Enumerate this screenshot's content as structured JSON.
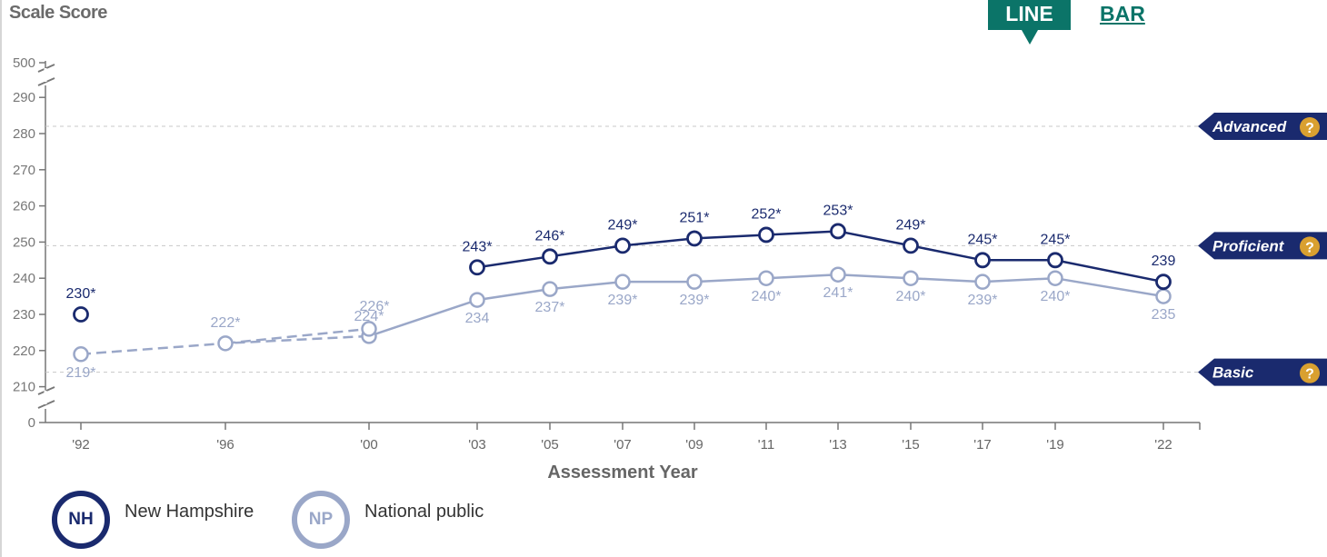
{
  "toggle": {
    "line_label": "LINE",
    "bar_label": "BAR",
    "active": "LINE"
  },
  "legend": [
    {
      "abbr": "NH",
      "label": "New Hampshire"
    },
    {
      "abbr": "NP",
      "label": "National public"
    }
  ],
  "colors": {
    "new_hampshire": "#1a2a6e",
    "national_public": "#9aa7c8",
    "accent": "#0b7468",
    "axis": "#777777",
    "achievement_badge": "#1a2a6e",
    "help_icon": "#d9a030"
  },
  "chart_data": {
    "type": "line",
    "ylabel": "Scale Score",
    "xlabel": "Assessment Year",
    "categories": [
      "'92",
      "'96",
      "'00",
      "'03",
      "'05",
      "'07",
      "'09",
      "'11",
      "'13",
      "'15",
      "'17",
      "'19",
      "'22"
    ],
    "yticks": [
      0,
      210,
      220,
      230,
      240,
      250,
      260,
      270,
      280,
      290,
      500
    ],
    "ylim": [
      210,
      290
    ],
    "axis_breaks": [
      "0-210",
      "290-500"
    ],
    "grid": false,
    "legend_position": "bottom-left",
    "achievement_levels": [
      {
        "name": "Advanced",
        "score": 282
      },
      {
        "name": "Proficient",
        "score": 249
      },
      {
        "name": "Basic",
        "score": 214
      }
    ],
    "series": [
      {
        "name": "New Hampshire",
        "values": [
          230,
          null,
          null,
          243,
          246,
          249,
          251,
          252,
          253,
          249,
          245,
          245,
          239
        ],
        "labels": [
          "230*",
          "",
          "",
          "243*",
          "246*",
          "249*",
          "251*",
          "252*",
          "253*",
          "249*",
          "245*",
          "245*",
          "239"
        ],
        "dashed_segments": []
      },
      {
        "name": "National public",
        "values": [
          219,
          222,
          224,
          234,
          237,
          239,
          239,
          240,
          241,
          240,
          239,
          240,
          235
        ],
        "labels": [
          "219*",
          "222*",
          "224*",
          "234",
          "237*",
          "239*",
          "239*",
          "240*",
          "241*",
          "240*",
          "239*",
          "240*",
          "235"
        ],
        "alt_point": {
          "category": "'00",
          "value": 226,
          "label": "226*"
        }
      }
    ]
  }
}
